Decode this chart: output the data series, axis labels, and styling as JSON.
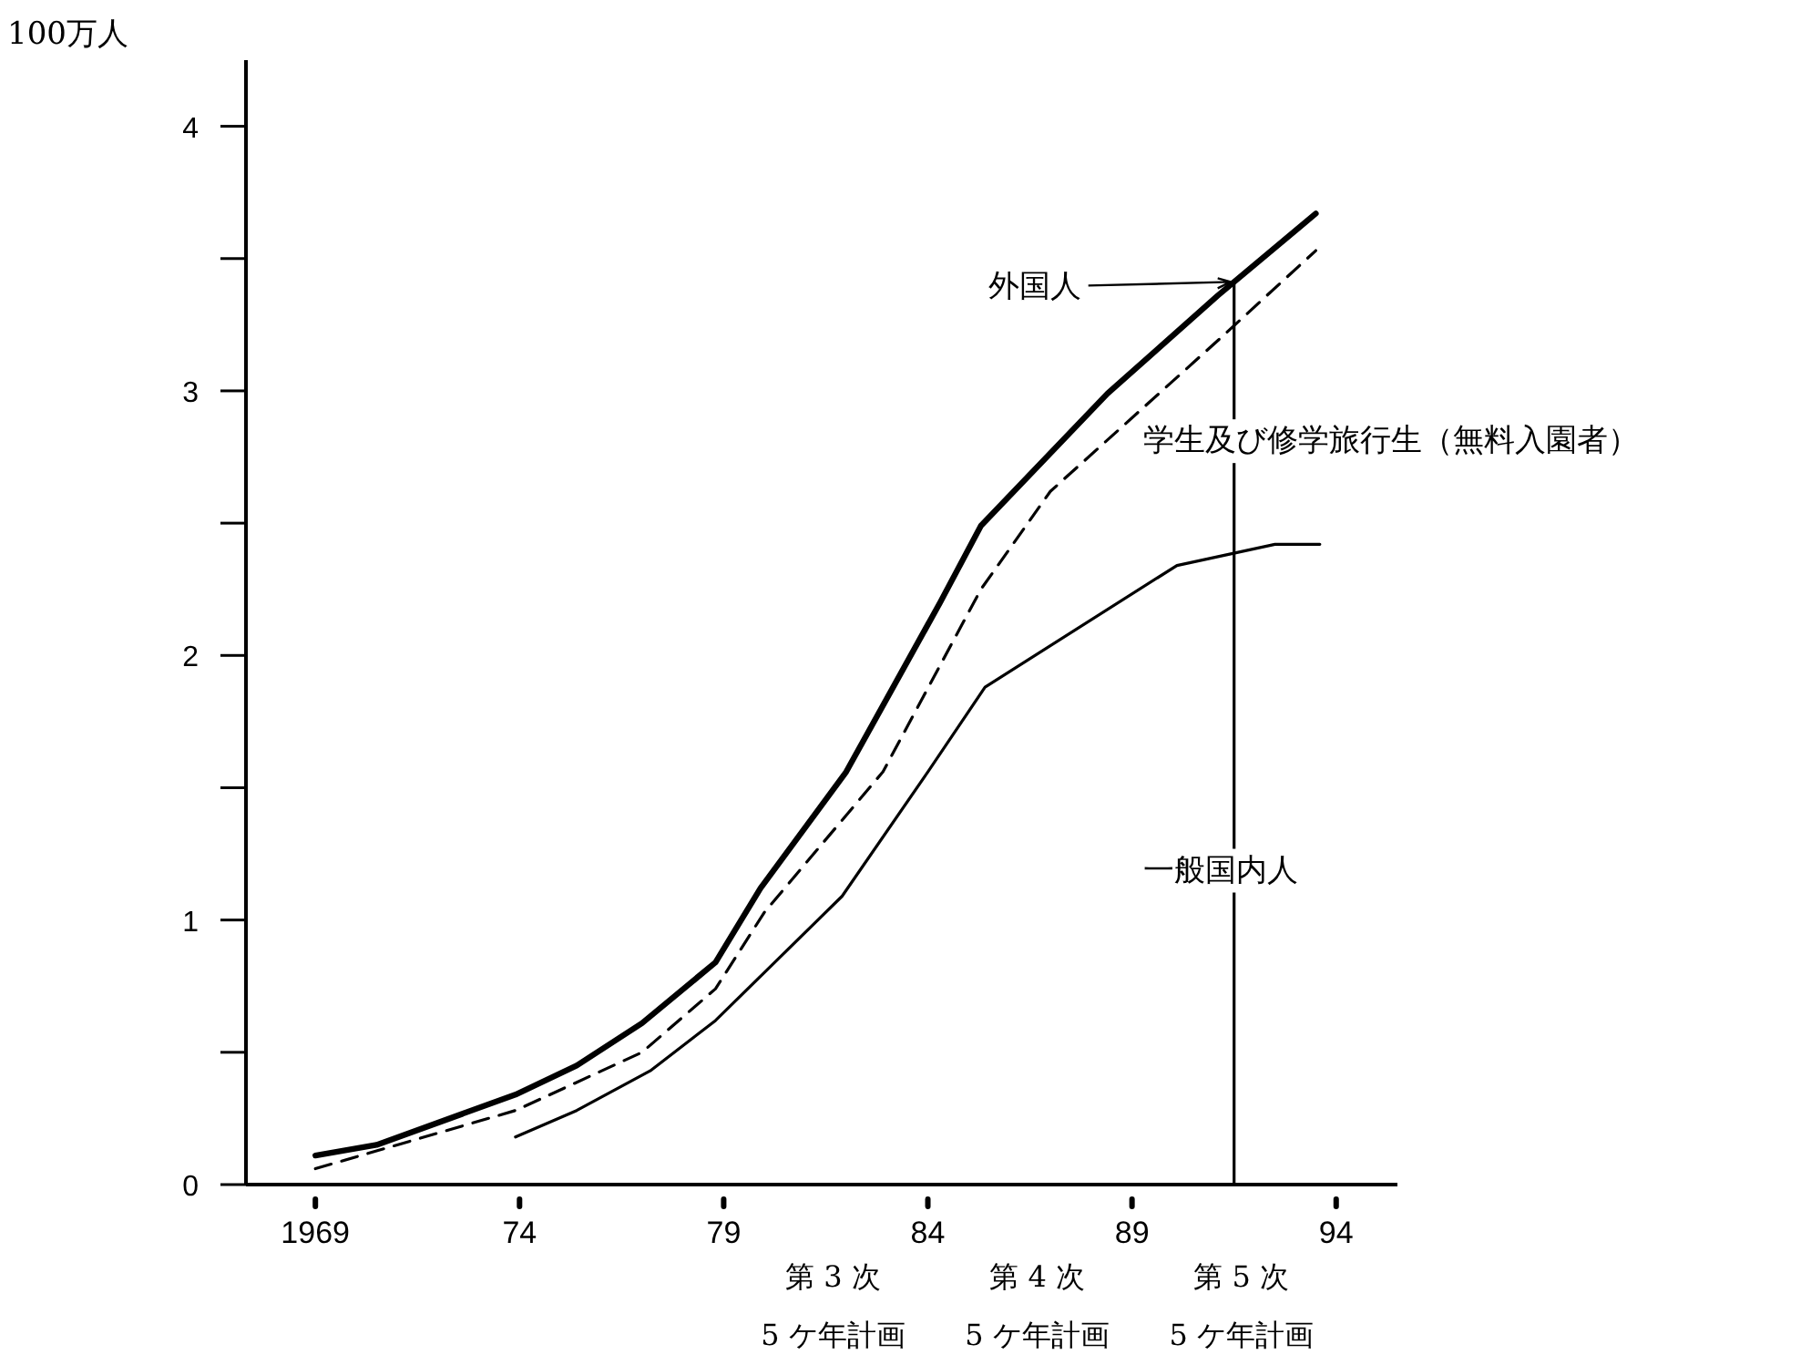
{
  "chart_data": {
    "type": "line",
    "ylabel": "100万人",
    "xlim": [
      1967.3,
      1995.5
    ],
    "ylim": [
      0,
      4.25
    ],
    "xticks": [
      {
        "value": 1969,
        "label": "1969"
      },
      {
        "value": 1974,
        "label": "74"
      },
      {
        "value": 1979,
        "label": "79"
      },
      {
        "value": 1984,
        "label": "84"
      },
      {
        "value": 1989,
        "label": "89"
      },
      {
        "value": 1994,
        "label": "94"
      }
    ],
    "yticks": [
      0,
      {
        "value": 0.5,
        "label": null
      },
      1,
      {
        "value": 1.5,
        "label": null
      },
      2,
      {
        "value": 2.5,
        "label": null
      },
      3,
      {
        "value": 3.5,
        "label": null
      },
      4
    ],
    "series": [
      {
        "color": "#000000",
        "line_style": "solid",
        "x": [
          1969,
          1970.5,
          1973.9,
          1975.4,
          1977,
          1978.8,
          1979.9,
          1982,
          1984.3,
          1985.3,
          1988.4,
          1991.1,
          1993.5
        ],
        "values": [
          0.11,
          0.15,
          0.34,
          0.45,
          0.61,
          0.84,
          1.12,
          1.56,
          2.2,
          2.49,
          2.99,
          3.36,
          3.67
        ]
      },
      {
        "color": "#000000",
        "line_style": "dashed",
        "x": [
          1969,
          1973.9,
          1977,
          1978.8,
          1980,
          1982.9,
          1985.3,
          1987,
          1991.1,
          1993.5
        ],
        "values": [
          0.06,
          0.28,
          0.5,
          0.74,
          1.03,
          1.56,
          2.25,
          2.62,
          3.19,
          3.53
        ]
      },
      {
        "color": "#000000",
        "line_style": "solid",
        "x": [
          1973.9,
          1975.4,
          1977.2,
          1978.8,
          1981.9,
          1984,
          1985.4,
          1990.1,
          1992.5,
          1993.6
        ],
        "values": [
          0.18,
          0.28,
          0.43,
          0.62,
          1.09,
          1.56,
          1.88,
          2.34,
          2.42,
          2.42
        ]
      }
    ],
    "ref_lines": [
      {
        "axis": "x",
        "value": 1991.5,
        "color": "#000000",
        "line_style": "solid"
      }
    ],
    "annotations": [
      "外国人",
      "学生及び修学旅行生（無料入園者）",
      "一般国内人",
      "第 3 次",
      "第 4 次",
      "第 5 次",
      "5 ケ年計画",
      "5 ケ年計画",
      "5 ケ年計画"
    ],
    "marker": "none",
    "grid": false
  }
}
